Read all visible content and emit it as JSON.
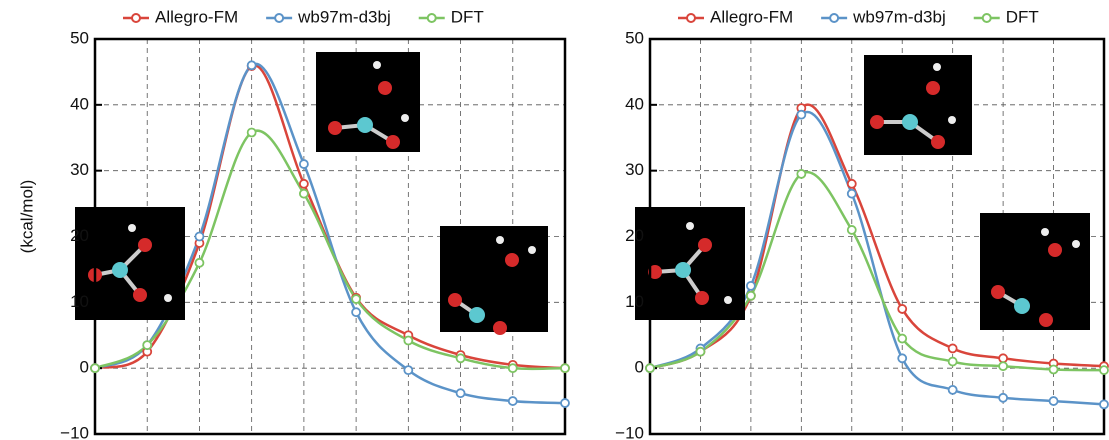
{
  "chart_data": [
    {
      "type": "line",
      "ylabel": "(kcal/mol)",
      "ylim": [
        -10,
        50
      ],
      "yticks": [
        {
          "value": -10,
          "label": "−10"
        },
        0,
        10,
        20,
        30,
        40,
        50
      ],
      "grid": true,
      "legend": "top",
      "series": [
        {
          "name": "Allegro-FM",
          "color": "#d9453b",
          "values": [
            0,
            2.5,
            19,
            45.9,
            28,
            10.7,
            5,
            2,
            0.5,
            0
          ]
        },
        {
          "name": "wb97m-d3bj",
          "color": "#5b93c8",
          "values": [
            0,
            3.5,
            20,
            46,
            31,
            8.5,
            -0.3,
            -3.8,
            -5,
            -5.3
          ]
        },
        {
          "name": "DFT",
          "color": "#7dc462",
          "values": [
            0,
            3.5,
            16,
            35.8,
            26.5,
            10.5,
            4.2,
            1.5,
            0,
            0
          ]
        }
      ]
    },
    {
      "type": "line",
      "ylim": [
        -10,
        50
      ],
      "yticks": [
        {
          "value": -10,
          "label": "−10"
        },
        0,
        10,
        20,
        30,
        40,
        50
      ],
      "grid": true,
      "legend": "top",
      "series": [
        {
          "name": "Allegro-FM",
          "color": "#d9453b",
          "values": [
            0,
            2.5,
            11,
            39.5,
            28,
            9,
            3,
            1.5,
            0.7,
            0.3
          ]
        },
        {
          "name": "wb97m-d3bj",
          "color": "#5b93c8",
          "values": [
            0,
            3,
            12.5,
            38.5,
            26.5,
            1.5,
            -3.3,
            -4.5,
            -5,
            -5.5
          ]
        },
        {
          "name": "DFT",
          "color": "#7dc462",
          "values": [
            0,
            2.5,
            11,
            29.5,
            21,
            4.5,
            1,
            0.3,
            -0.2,
            -0.3
          ]
        }
      ]
    }
  ]
}
